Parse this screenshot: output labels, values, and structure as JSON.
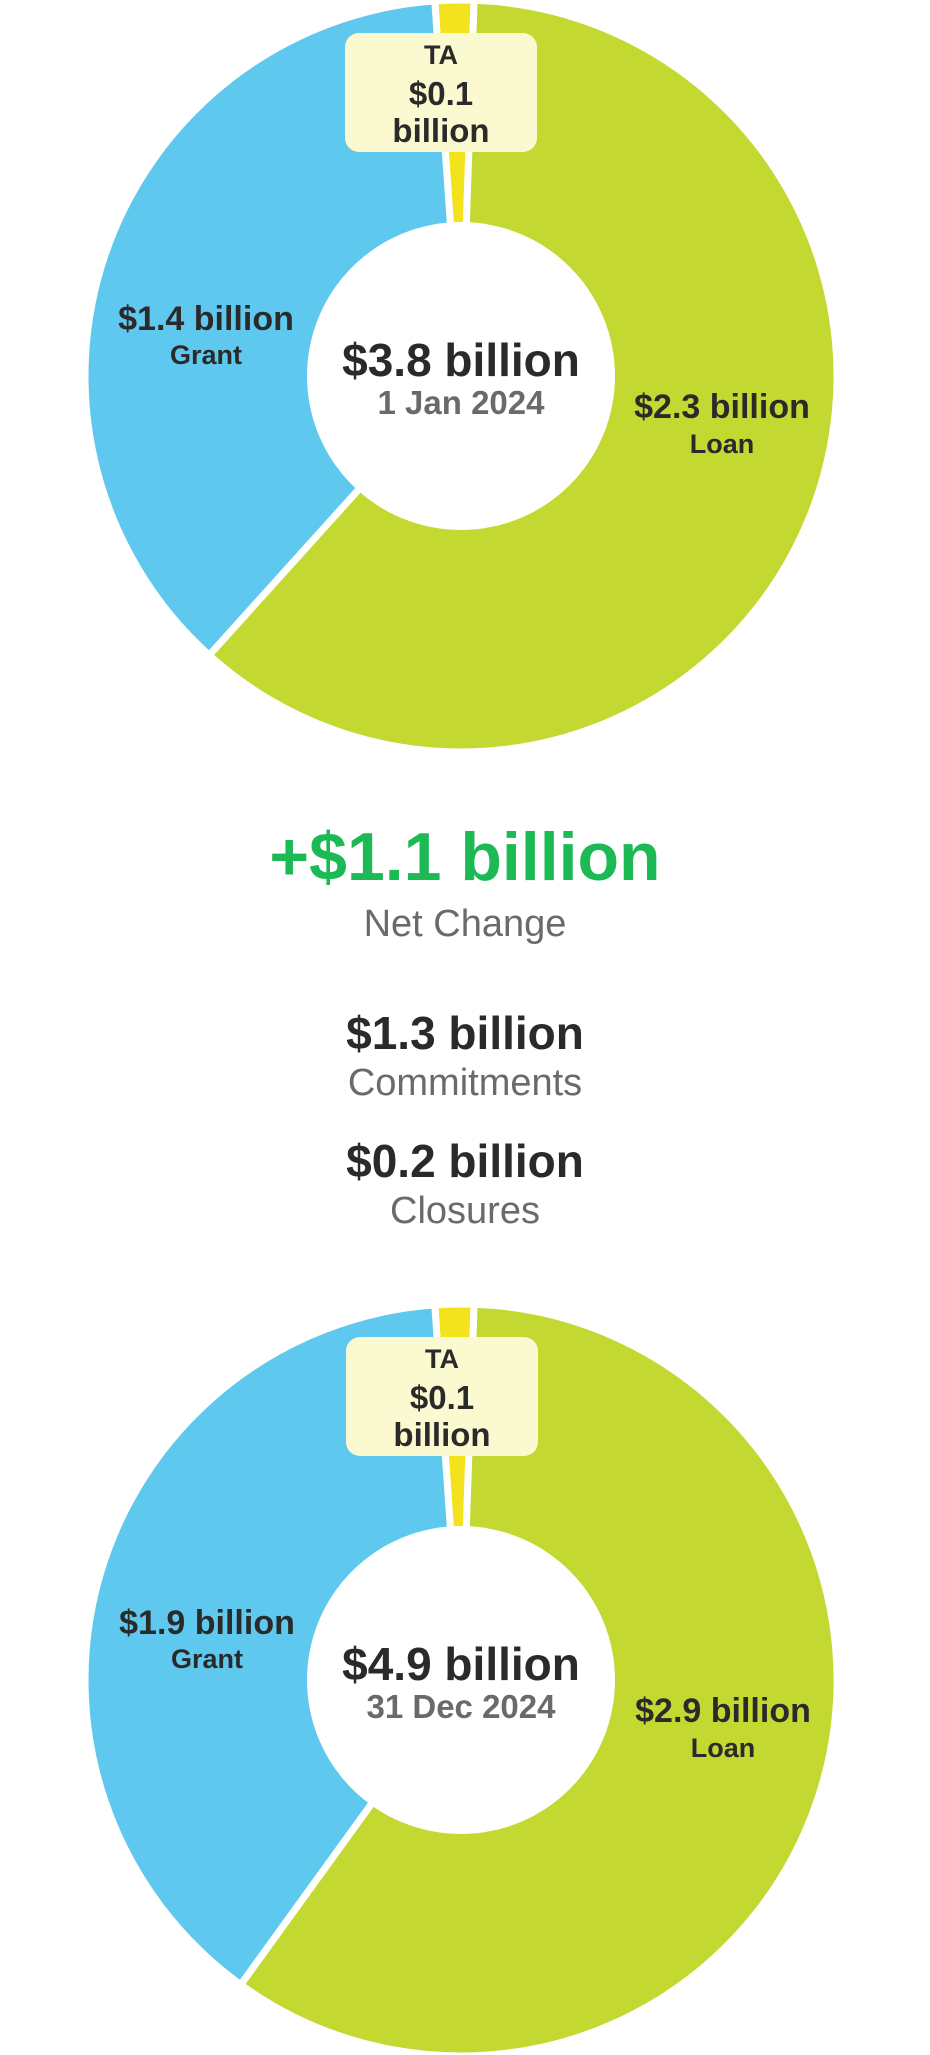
{
  "colors": {
    "loan": "#c4d832",
    "grant": "#5fc8ee",
    "ta": "#f2e31d",
    "ta_label_bg": "#fbf9d0",
    "net_change": "#1db954"
  },
  "chart_data": [
    {
      "type": "pie",
      "center_total": "$3.8 billion",
      "center_date": "1 Jan 2024",
      "slices": [
        {
          "name": "TA",
          "value": 0.1,
          "value_label": "$0.1 billion"
        },
        {
          "name": "Loan",
          "value": 2.3,
          "value_label": "$2.3 billion"
        },
        {
          "name": "Grant",
          "value": 1.4,
          "value_label": "$1.4 billion"
        }
      ],
      "ta_label": {
        "name": "TA",
        "value": "$0.1",
        "unit": "billion"
      }
    },
    {
      "type": "pie",
      "center_total": "$4.9 billion",
      "center_date": "31 Dec 2024",
      "slices": [
        {
          "name": "TA",
          "value": 0.1,
          "value_label": "$0.1 billion"
        },
        {
          "name": "Loan",
          "value": 2.9,
          "value_label": "$2.9 billion"
        },
        {
          "name": "Grant",
          "value": 1.9,
          "value_label": "$1.9 billion"
        }
      ],
      "ta_label": {
        "name": "TA",
        "value": "$0.1",
        "unit": "billion"
      }
    }
  ],
  "summary": {
    "net_change_value": "+$1.1 billion",
    "net_change_label": "Net Change",
    "commitments_value": "$1.3 billion",
    "commitments_label": "Commitments",
    "closures_value": "$0.2 billion",
    "closures_label": "Closures"
  }
}
